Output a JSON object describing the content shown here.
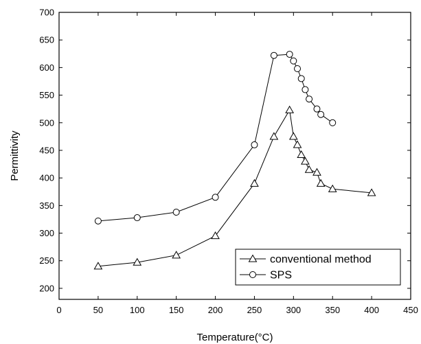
{
  "chart_data": {
    "type": "line",
    "xlabel": "Temperature(°C)",
    "ylabel": "Permittivity",
    "xlim": [
      0,
      450
    ],
    "ylim": [
      180,
      700
    ],
    "xticks": [
      0,
      50,
      100,
      150,
      200,
      250,
      300,
      350,
      400,
      450
    ],
    "yticks": [
      200,
      250,
      300,
      350,
      400,
      450,
      500,
      550,
      600,
      650,
      700
    ],
    "grid": false,
    "legend_position": "bottom-right",
    "series": [
      {
        "name": "conventional method",
        "marker": "triangle",
        "x": [
          50,
          100,
          150,
          200,
          250,
          275,
          295,
          300,
          305,
          310,
          315,
          320,
          330,
          335,
          350,
          400
        ],
        "y": [
          240,
          247,
          260,
          295,
          390,
          475,
          523,
          475,
          460,
          442,
          430,
          415,
          410,
          390,
          380,
          373
        ]
      },
      {
        "name": "SPS",
        "marker": "circle",
        "x": [
          50,
          100,
          150,
          200,
          250,
          275,
          295,
          300,
          305,
          310,
          315,
          320,
          330,
          335,
          350
        ],
        "y": [
          322,
          328,
          338,
          365,
          460,
          622,
          624,
          612,
          598,
          580,
          560,
          543,
          525,
          515,
          500
        ]
      }
    ]
  }
}
